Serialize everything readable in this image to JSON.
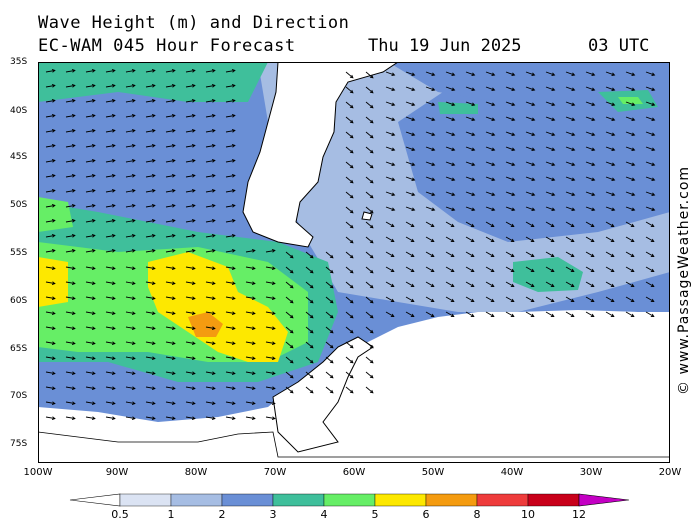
{
  "title": "Wave Height (m) and Direction",
  "subtitle_model": "EC-WAM 045 Hour Forecast",
  "subtitle_date": "Thu 19 Jun 2025",
  "subtitle_time": "03 UTC",
  "watermark": "© www.PassageWeather.com",
  "lat_labels": [
    "35S",
    "40S",
    "45S",
    "50S",
    "55S",
    "60S",
    "65S",
    "70S",
    "75S"
  ],
  "lon_labels": [
    "100W",
    "90W",
    "80W",
    "70W",
    "60W",
    "50W",
    "40W",
    "30W",
    "20W"
  ],
  "legend": {
    "levels": [
      "0.5",
      "1",
      "2",
      "3",
      "4",
      "5",
      "6",
      "8",
      "10",
      "12"
    ],
    "colors": [
      "#ffffff",
      "#dbe3f3",
      "#a6bde3",
      "#6a8fd6",
      "#3fbf9b",
      "#66ee66",
      "#fde800",
      "#f49b10",
      "#ee3b3b",
      "#c8001a",
      "#c400c4"
    ]
  },
  "map": {
    "colors": {
      "ocean_low": "#a6bde3",
      "ocean_mid": "#6a8fd6",
      "teal": "#3fbf9b",
      "green": "#66ee66",
      "yellow": "#fde800",
      "orange": "#f49b10",
      "ice": "#ffffff",
      "land": "#ffffff"
    }
  }
}
